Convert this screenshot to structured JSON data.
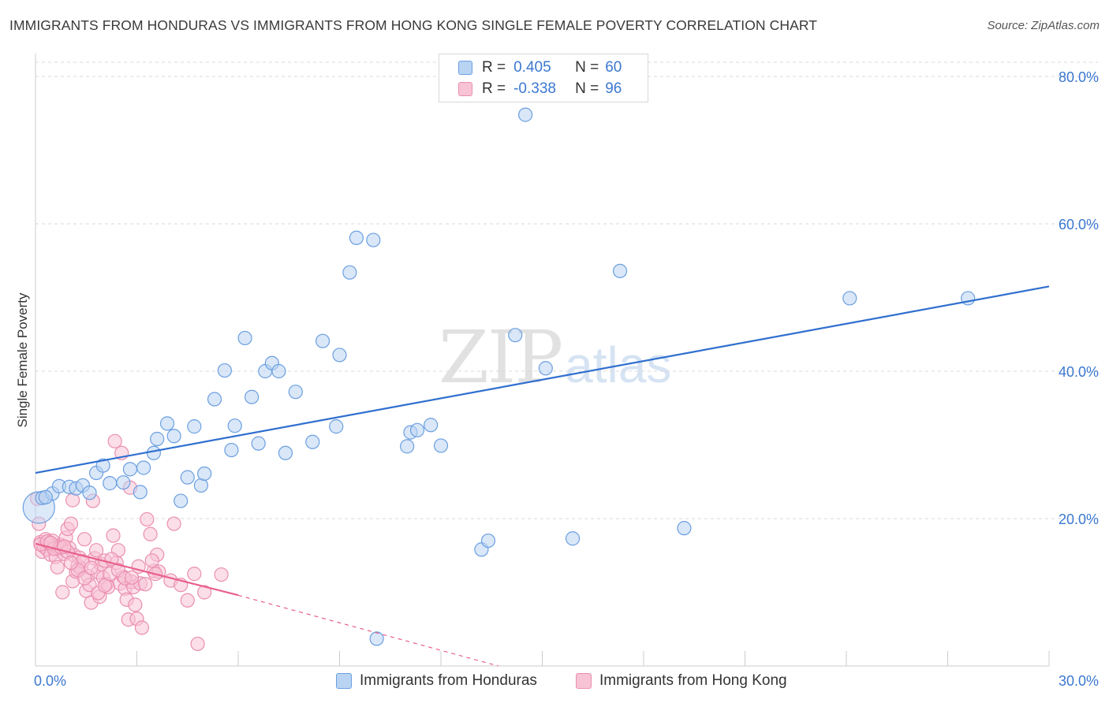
{
  "title": "IMMIGRANTS FROM HONDURAS VS IMMIGRANTS FROM HONG KONG SINGLE FEMALE POVERTY CORRELATION CHART",
  "source": "Source: ZipAtlas.com",
  "watermark": {
    "zip": "ZIP",
    "atlas": "atlas"
  },
  "colors": {
    "honduras_fill": "#b9d3f3",
    "honduras_stroke": "#6b9fe0",
    "honduras_line": "#2f6fcf",
    "hongkong_fill": "#f8c3d5",
    "hongkong_stroke": "#ea8fb0",
    "hongkong_line": "#e8618c",
    "axis_text": "#3b78d0",
    "grid": "#d9d9d9"
  },
  "legend_top": {
    "honduras": {
      "r_label": "R =",
      "r_value": "0.405",
      "n_label": "N =",
      "n_value": "60"
    },
    "hongkong": {
      "r_label": "R =",
      "r_value": "-0.338",
      "n_label": "N =",
      "n_value": "96"
    }
  },
  "legend_bottom": {
    "honduras": "Immigrants from Honduras",
    "hongkong": "Immigrants from Hong Kong"
  },
  "chart_data": {
    "type": "scatter",
    "title": "IMMIGRANTS FROM HONDURAS VS IMMIGRANTS FROM HONG KONG SINGLE FEMALE POVERTY CORRELATION CHART",
    "xlabel": "",
    "ylabel": "Single Female Poverty",
    "xlim": [
      0,
      30
    ],
    "ylim": [
      0,
      80
    ],
    "x_tick_labels": [
      {
        "value": 0,
        "label": "0.0%"
      },
      {
        "value": 30,
        "label": "30.0%"
      }
    ],
    "y_tick_labels": [
      {
        "value": 20,
        "label": "20.0%"
      },
      {
        "value": 40,
        "label": "40.0%"
      },
      {
        "value": 60,
        "label": "60.0%"
      },
      {
        "value": 80,
        "label": "80.0%"
      }
    ],
    "grid": true,
    "series": [
      {
        "name": "Immigrants from Honduras",
        "R": 0.405,
        "N": 60,
        "trend": {
          "x": [
            0,
            30
          ],
          "y": [
            26.2,
            51.5
          ],
          "style": "solid"
        },
        "points": [
          {
            "x": 0.1,
            "y": 21.5,
            "big": true
          },
          {
            "x": 0.2,
            "y": 22.8
          },
          {
            "x": 0.5,
            "y": 23.4
          },
          {
            "x": 0.7,
            "y": 24.4
          },
          {
            "x": 1.0,
            "y": 24.3
          },
          {
            "x": 1.2,
            "y": 24.1
          },
          {
            "x": 1.4,
            "y": 24.5
          },
          {
            "x": 1.6,
            "y": 23.5
          },
          {
            "x": 1.8,
            "y": 26.2
          },
          {
            "x": 2.0,
            "y": 27.2
          },
          {
            "x": 2.2,
            "y": 24.8
          },
          {
            "x": 2.6,
            "y": 24.9
          },
          {
            "x": 2.8,
            "y": 26.7
          },
          {
            "x": 3.1,
            "y": 23.6
          },
          {
            "x": 3.2,
            "y": 26.9
          },
          {
            "x": 3.5,
            "y": 28.9
          },
          {
            "x": 3.6,
            "y": 30.8
          },
          {
            "x": 3.9,
            "y": 32.9
          },
          {
            "x": 4.1,
            "y": 31.2
          },
          {
            "x": 4.3,
            "y": 22.4
          },
          {
            "x": 4.5,
            "y": 25.6
          },
          {
            "x": 4.7,
            "y": 32.5
          },
          {
            "x": 4.9,
            "y": 24.5
          },
          {
            "x": 5.0,
            "y": 26.1
          },
          {
            "x": 5.3,
            "y": 36.2
          },
          {
            "x": 5.6,
            "y": 40.1
          },
          {
            "x": 5.8,
            "y": 29.3
          },
          {
            "x": 5.9,
            "y": 32.6
          },
          {
            "x": 6.2,
            "y": 44.5
          },
          {
            "x": 6.4,
            "y": 36.5
          },
          {
            "x": 6.6,
            "y": 30.2
          },
          {
            "x": 6.8,
            "y": 40.0
          },
          {
            "x": 7.0,
            "y": 41.1
          },
          {
            "x": 7.2,
            "y": 40.0
          },
          {
            "x": 7.4,
            "y": 28.9
          },
          {
            "x": 7.7,
            "y": 37.2
          },
          {
            "x": 8.2,
            "y": 30.4
          },
          {
            "x": 8.5,
            "y": 44.1
          },
          {
            "x": 8.9,
            "y": 32.5
          },
          {
            "x": 9.0,
            "y": 42.2
          },
          {
            "x": 9.3,
            "y": 53.4
          },
          {
            "x": 9.5,
            "y": 58.1
          },
          {
            "x": 10.0,
            "y": 57.8
          },
          {
            "x": 10.1,
            "y": 3.7
          },
          {
            "x": 11.0,
            "y": 29.8
          },
          {
            "x": 11.1,
            "y": 31.7
          },
          {
            "x": 11.3,
            "y": 32.0
          },
          {
            "x": 11.7,
            "y": 32.7
          },
          {
            "x": 12.0,
            "y": 29.9
          },
          {
            "x": 13.2,
            "y": 15.8
          },
          {
            "x": 13.4,
            "y": 17.0
          },
          {
            "x": 14.2,
            "y": 44.9
          },
          {
            "x": 14.5,
            "y": 74.8
          },
          {
            "x": 15.1,
            "y": 40.4
          },
          {
            "x": 15.9,
            "y": 17.3
          },
          {
            "x": 17.3,
            "y": 53.6
          },
          {
            "x": 19.2,
            "y": 18.7
          },
          {
            "x": 24.1,
            "y": 49.9
          },
          {
            "x": 27.6,
            "y": 49.9
          },
          {
            "x": 0.3,
            "y": 22.9
          }
        ]
      },
      {
        "name": "Immigrants from Hong Kong",
        "R": -0.338,
        "N": 96,
        "trend": {
          "x": [
            0,
            6.0
          ],
          "y": [
            16.6,
            9.6
          ],
          "style": "solid",
          "dashed_extension": {
            "x": [
              6.0,
              13.7
            ],
            "y": [
              9.6,
              0.0
            ]
          }
        },
        "points": [
          {
            "x": 0.05,
            "y": 22.7
          },
          {
            "x": 0.1,
            "y": 19.3
          },
          {
            "x": 0.15,
            "y": 16.8
          },
          {
            "x": 0.2,
            "y": 15.5
          },
          {
            "x": 0.25,
            "y": 16.2
          },
          {
            "x": 0.3,
            "y": 17.2
          },
          {
            "x": 0.35,
            "y": 15.8
          },
          {
            "x": 0.4,
            "y": 16.6
          },
          {
            "x": 0.45,
            "y": 15.1
          },
          {
            "x": 0.5,
            "y": 17.0
          },
          {
            "x": 0.55,
            "y": 16.3
          },
          {
            "x": 0.6,
            "y": 14.8
          },
          {
            "x": 0.65,
            "y": 13.4
          },
          {
            "x": 0.7,
            "y": 15.9
          },
          {
            "x": 0.75,
            "y": 16.4
          },
          {
            "x": 0.8,
            "y": 10.0
          },
          {
            "x": 0.85,
            "y": 15.2
          },
          {
            "x": 0.9,
            "y": 17.4
          },
          {
            "x": 0.95,
            "y": 18.6
          },
          {
            "x": 1.0,
            "y": 16.0
          },
          {
            "x": 1.05,
            "y": 19.3
          },
          {
            "x": 1.1,
            "y": 11.5
          },
          {
            "x": 1.15,
            "y": 15.0
          },
          {
            "x": 1.2,
            "y": 12.8
          },
          {
            "x": 1.25,
            "y": 13.6
          },
          {
            "x": 1.3,
            "y": 14.7
          },
          {
            "x": 1.35,
            "y": 13.2
          },
          {
            "x": 1.4,
            "y": 14.2
          },
          {
            "x": 1.45,
            "y": 17.2
          },
          {
            "x": 1.5,
            "y": 10.2
          },
          {
            "x": 1.55,
            "y": 12.2
          },
          {
            "x": 1.6,
            "y": 11.0
          },
          {
            "x": 1.65,
            "y": 8.6
          },
          {
            "x": 1.7,
            "y": 22.4
          },
          {
            "x": 1.75,
            "y": 14.6
          },
          {
            "x": 1.8,
            "y": 15.7
          },
          {
            "x": 1.85,
            "y": 12.7
          },
          {
            "x": 1.9,
            "y": 9.4
          },
          {
            "x": 1.95,
            "y": 13.8
          },
          {
            "x": 2.0,
            "y": 12.0
          },
          {
            "x": 2.05,
            "y": 14.3
          },
          {
            "x": 2.1,
            "y": 11.1
          },
          {
            "x": 2.15,
            "y": 10.7
          },
          {
            "x": 2.2,
            "y": 12.5
          },
          {
            "x": 2.3,
            "y": 17.7
          },
          {
            "x": 2.35,
            "y": 30.5
          },
          {
            "x": 2.4,
            "y": 14.0
          },
          {
            "x": 2.45,
            "y": 15.7
          },
          {
            "x": 2.5,
            "y": 11.2
          },
          {
            "x": 2.55,
            "y": 28.9
          },
          {
            "x": 2.6,
            "y": 12.1
          },
          {
            "x": 2.65,
            "y": 10.5
          },
          {
            "x": 2.7,
            "y": 9.0
          },
          {
            "x": 2.75,
            "y": 6.3
          },
          {
            "x": 2.8,
            "y": 24.2
          },
          {
            "x": 2.85,
            "y": 11.4
          },
          {
            "x": 2.9,
            "y": 10.7
          },
          {
            "x": 2.95,
            "y": 8.3
          },
          {
            "x": 3.0,
            "y": 6.4
          },
          {
            "x": 3.05,
            "y": 13.5
          },
          {
            "x": 3.1,
            "y": 11.2
          },
          {
            "x": 3.15,
            "y": 5.2
          },
          {
            "x": 3.3,
            "y": 19.9
          },
          {
            "x": 3.4,
            "y": 17.9
          },
          {
            "x": 3.5,
            "y": 12.9
          },
          {
            "x": 3.6,
            "y": 15.1
          },
          {
            "x": 4.0,
            "y": 11.6
          },
          {
            "x": 4.1,
            "y": 19.3
          },
          {
            "x": 4.3,
            "y": 11.0
          },
          {
            "x": 4.5,
            "y": 8.9
          },
          {
            "x": 4.7,
            "y": 12.5
          },
          {
            "x": 4.8,
            "y": 3.0
          },
          {
            "x": 5.0,
            "y": 10.0
          },
          {
            "x": 5.5,
            "y": 12.4
          },
          {
            "x": 1.1,
            "y": 22.5
          },
          {
            "x": 0.15,
            "y": 16.5
          },
          {
            "x": 0.35,
            "y": 16.9
          },
          {
            "x": 0.55,
            "y": 15.9
          },
          {
            "x": 0.75,
            "y": 16.1
          },
          {
            "x": 0.95,
            "y": 15.5
          },
          {
            "x": 1.25,
            "y": 13.0
          },
          {
            "x": 1.45,
            "y": 11.9
          },
          {
            "x": 1.65,
            "y": 13.3
          },
          {
            "x": 1.85,
            "y": 9.9
          },
          {
            "x": 2.05,
            "y": 10.9
          },
          {
            "x": 2.25,
            "y": 14.5
          },
          {
            "x": 2.45,
            "y": 13.0
          },
          {
            "x": 2.65,
            "y": 11.9
          },
          {
            "x": 2.85,
            "y": 12.0
          },
          {
            "x": 3.25,
            "y": 11.1
          },
          {
            "x": 3.45,
            "y": 14.3
          },
          {
            "x": 3.65,
            "y": 12.8
          },
          {
            "x": 0.45,
            "y": 16.7
          },
          {
            "x": 0.85,
            "y": 16.2
          },
          {
            "x": 1.05,
            "y": 14.0
          },
          {
            "x": 3.55,
            "y": 12.5
          }
        ]
      }
    ]
  }
}
